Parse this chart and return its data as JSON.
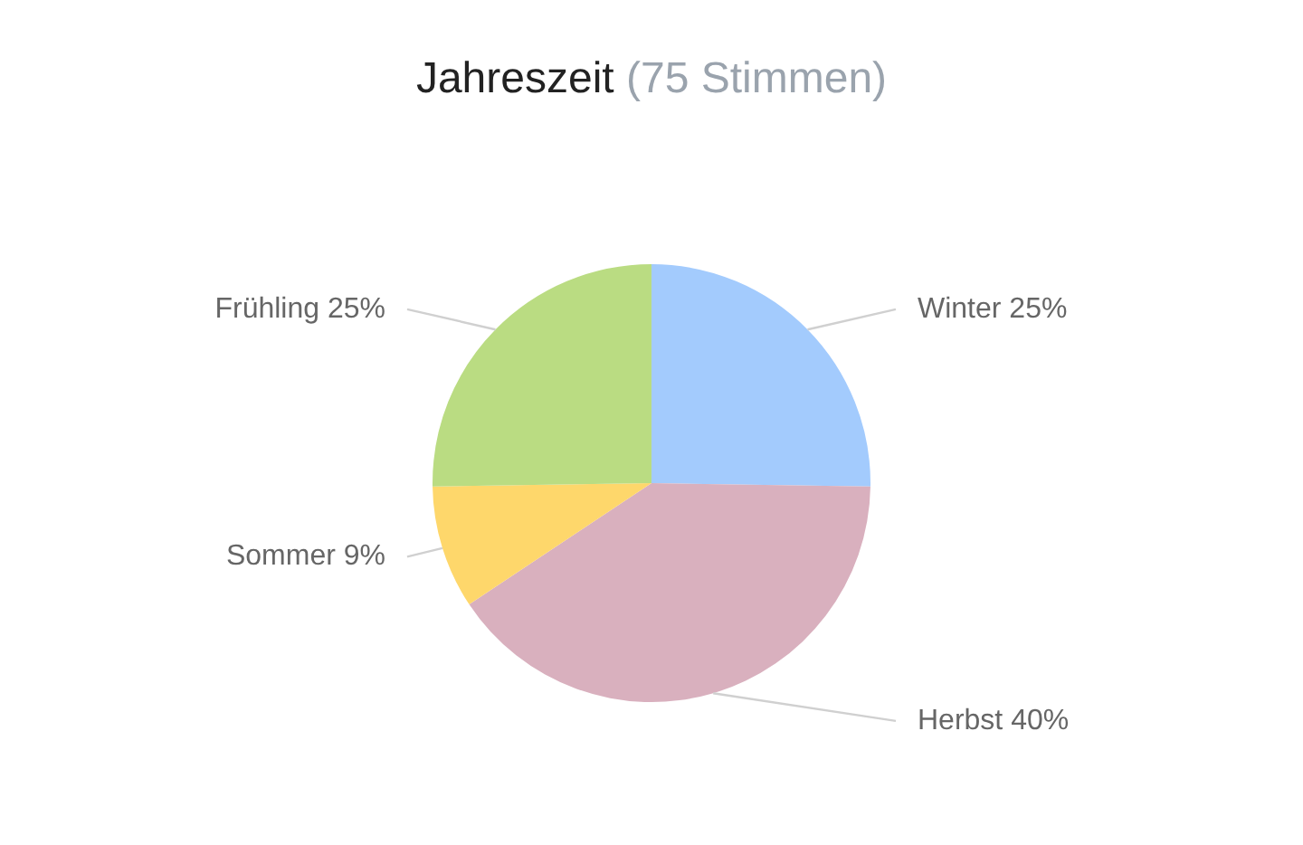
{
  "chart_data": {
    "type": "pie",
    "title": "Jahreszeit",
    "subtitle": "(75 Stimmen)",
    "categories": [
      "Winter",
      "Herbst",
      "Sommer",
      "Frühling"
    ],
    "values": [
      25,
      40,
      9,
      25
    ],
    "value_labels": [
      "25%",
      "40%",
      "9%",
      "25%"
    ],
    "colors": [
      "#a3cbfd",
      "#d9b0be",
      "#fed76b",
      "#badc82"
    ],
    "legend": false
  }
}
